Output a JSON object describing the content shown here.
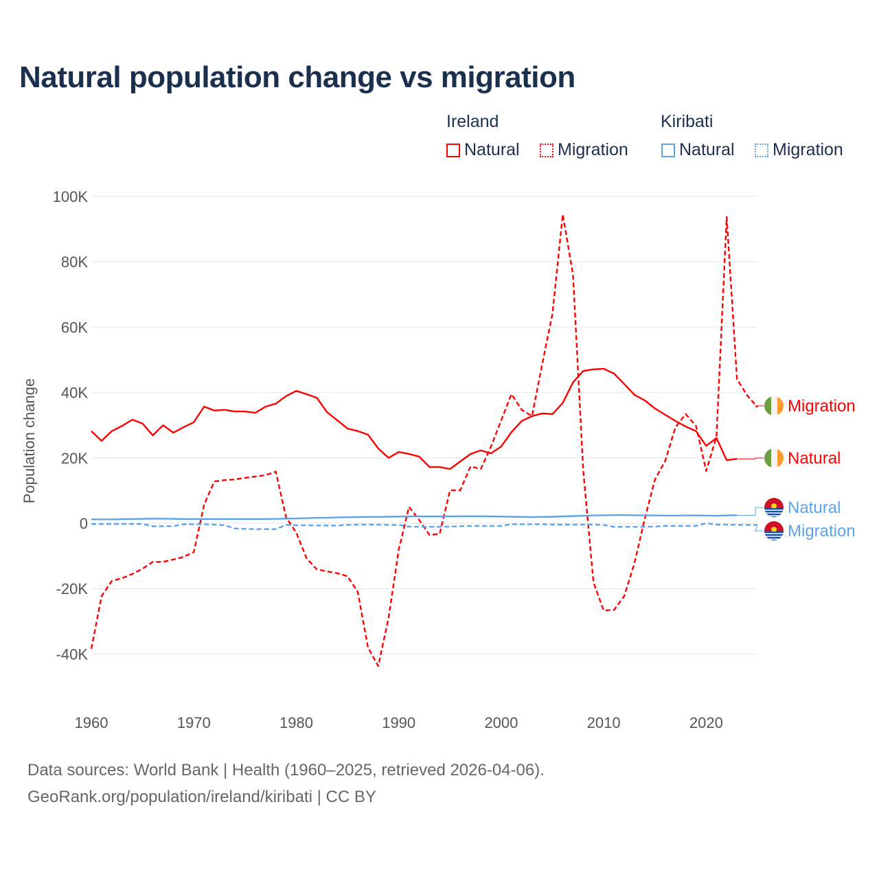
{
  "chart_data": {
    "type": "line",
    "title": "Natural population change vs migration",
    "xlabel": "",
    "ylabel": "Population change",
    "xlim": [
      1960,
      2025
    ],
    "ylim": [
      -50000,
      100000
    ],
    "x_ticks": [
      1960,
      1970,
      1980,
      1990,
      2000,
      2010,
      2020
    ],
    "x_tick_labels": [
      "1960",
      "1970",
      "1980",
      "1990",
      "2000",
      "2010",
      "2020"
    ],
    "y_ticks": [
      -40000,
      -20000,
      0,
      20000,
      40000,
      60000,
      80000,
      100000
    ],
    "y_tick_labels": [
      "-40K",
      "-20K",
      "0",
      "20K",
      "40K",
      "60K",
      "80K",
      "100K"
    ],
    "grid": true,
    "legend": {
      "placement": "top-right",
      "groups": [
        {
          "name": "Ireland",
          "entries": [
            "Natural",
            "Migration"
          ]
        },
        {
          "name": "Kiribati",
          "entries": [
            "Natural",
            "Migration"
          ]
        }
      ]
    },
    "series": [
      {
        "name": "Ireland Natural",
        "country": "Ireland",
        "kind": "Natural",
        "color": "#ff0000",
        "dash": "solid",
        "end_label": "Natural",
        "start_year": 1960,
        "values": [
          28200,
          25200,
          28200,
          29800,
          31700,
          30500,
          26900,
          30000,
          27700,
          29400,
          30900,
          35700,
          34500,
          34700,
          34200,
          34200,
          33800,
          35700,
          36600,
          38900,
          40500,
          39500,
          38400,
          34000,
          31500,
          29000,
          28200,
          27100,
          22900,
          20000,
          21800,
          21200,
          20400,
          17200,
          17200,
          16600,
          18900,
          21200,
          22300,
          21400,
          23500,
          27900,
          31300,
          32800,
          33600,
          33400,
          36800,
          43100,
          46600,
          47100,
          47300,
          45800,
          42600,
          39300,
          37600,
          35100,
          33200,
          31300,
          29600,
          28200,
          23700,
          26100,
          19300,
          19700
        ]
      },
      {
        "name": "Ireland Migration",
        "country": "Ireland",
        "kind": "Migration",
        "color": "#ff0000",
        "dash": "dashed",
        "end_label": "Migration",
        "start_year": 1960,
        "values": [
          -38400,
          -22300,
          -17600,
          -16800,
          -15500,
          -13900,
          -11800,
          -11800,
          -11100,
          -10300,
          -8800,
          5700,
          12800,
          13200,
          13400,
          13900,
          14300,
          14700,
          15800,
          1900,
          -2900,
          -10700,
          -14100,
          -14700,
          -15300,
          -16200,
          -21000,
          -38000,
          -43700,
          -29000,
          -8000,
          5000,
          1000,
          -3600,
          -3200,
          10100,
          10100,
          17400,
          16600,
          23500,
          31500,
          39500,
          34700,
          32800,
          48700,
          64100,
          94500,
          76100,
          16200,
          -18100,
          -26700,
          -26500,
          -22300,
          -12200,
          1300,
          13400,
          19100,
          29400,
          33400,
          29800,
          16000,
          26500,
          93700,
          44100,
          39100,
          35500
        ]
      },
      {
        "name": "Kiribati Natural",
        "country": "Kiribati",
        "kind": "Natural",
        "color": "#5ba3ea",
        "dash": "solid",
        "end_label": "Natural",
        "start_year": 1960,
        "values": [
          1200,
          1200,
          1200,
          1250,
          1300,
          1350,
          1400,
          1400,
          1350,
          1300,
          1300,
          1300,
          1300,
          1300,
          1300,
          1300,
          1300,
          1300,
          1350,
          1400,
          1450,
          1550,
          1650,
          1700,
          1800,
          1850,
          1900,
          1950,
          1950,
          2000,
          2050,
          2100,
          2100,
          2100,
          2100,
          2100,
          2150,
          2150,
          2150,
          2100,
          2050,
          2000,
          1950,
          1900,
          1950,
          2000,
          2100,
          2200,
          2300,
          2400,
          2450,
          2500,
          2500,
          2450,
          2400,
          2400,
          2350,
          2350,
          2400,
          2400,
          2350,
          2300,
          2400,
          2450
        ]
      },
      {
        "name": "Kiribati Migration",
        "country": "Kiribati",
        "kind": "Migration",
        "color": "#5ba3ea",
        "dash": "dashed",
        "end_label": "Migration",
        "start_year": 1960,
        "values": [
          -200,
          -200,
          -200,
          -200,
          -200,
          -200,
          -900,
          -900,
          -900,
          -300,
          -300,
          -300,
          -400,
          -600,
          -1600,
          -1700,
          -1800,
          -1800,
          -1800,
          -500,
          -600,
          -600,
          -700,
          -700,
          -700,
          -500,
          -400,
          -400,
          -400,
          -500,
          -500,
          -1000,
          -1100,
          -1100,
          -1100,
          -1000,
          -900,
          -800,
          -800,
          -800,
          -800,
          -300,
          -300,
          -300,
          -300,
          -400,
          -400,
          -400,
          -400,
          -400,
          -500,
          -1100,
          -1100,
          -1100,
          -1100,
          -1000,
          -800,
          -800,
          -800,
          -800,
          0,
          -400,
          -400,
          -500,
          -500,
          -500
        ]
      }
    ]
  },
  "footer": {
    "line1": "Data sources: World Bank | Health (1960–2025, retrieved 2026-04-06).",
    "line2": "GeoRank.org/population/ireland/kiribati | CC BY"
  }
}
